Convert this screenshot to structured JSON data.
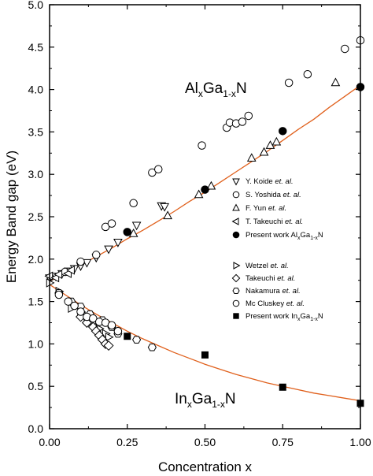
{
  "chart_data": {
    "type": "scatter",
    "xlabel": "Concentration x",
    "ylabel": "Energy Band gap (eV)",
    "xlim": [
      0,
      1
    ],
    "ylim": [
      0,
      5
    ],
    "x_ticks": [
      "0.00",
      "0.25",
      "0.50",
      "0.75",
      "1.00"
    ],
    "y_ticks": [
      "0.0",
      "0.5",
      "1.0",
      "1.5",
      "2.0",
      "2.5",
      "3.0",
      "3.5",
      "4.0",
      "4.5",
      "5.0"
    ],
    "grid": false,
    "legend_position": "right",
    "curve_color": "#e0601c",
    "annotations": [
      {
        "id": "algan",
        "parts": [
          {
            "t": "Al",
            "sub": false
          },
          {
            "t": "x",
            "sub": true
          },
          {
            "t": "Ga",
            "sub": false
          },
          {
            "t": "1-x",
            "sub": true
          },
          {
            "t": "N",
            "sub": false
          }
        ]
      },
      {
        "id": "ingan",
        "parts": [
          {
            "t": "In",
            "sub": false
          },
          {
            "t": "x",
            "sub": true
          },
          {
            "t": "Ga",
            "sub": false
          },
          {
            "t": "1-x",
            "sub": true
          },
          {
            "t": "N",
            "sub": false
          }
        ]
      }
    ],
    "fit_curves": [
      {
        "label": "AlGaN fit",
        "x": [
          0,
          0.05,
          0.1,
          0.15,
          0.2,
          0.25,
          0.3,
          0.35,
          0.4,
          0.45,
          0.5,
          0.55,
          0.6,
          0.65,
          0.7,
          0.75,
          0.8,
          0.85,
          0.9,
          0.95,
          1.0
        ],
        "y": [
          1.74,
          1.83,
          1.93,
          2.03,
          2.13,
          2.24,
          2.34,
          2.45,
          2.56,
          2.68,
          2.79,
          2.91,
          3.03,
          3.15,
          3.27,
          3.4,
          3.53,
          3.65,
          3.79,
          3.92,
          4.05
        ]
      },
      {
        "label": "InGaN fit",
        "x": [
          0,
          0.05,
          0.1,
          0.15,
          0.2,
          0.25,
          0.3,
          0.35,
          0.4,
          0.45,
          0.5,
          0.55,
          0.6,
          0.65,
          0.7,
          0.75,
          0.8,
          0.85,
          0.9,
          0.95,
          1.0
        ],
        "y": [
          1.7,
          1.58,
          1.46,
          1.35,
          1.25,
          1.15,
          1.06,
          0.98,
          0.9,
          0.83,
          0.76,
          0.7,
          0.64,
          0.59,
          0.54,
          0.5,
          0.46,
          0.42,
          0.39,
          0.36,
          0.33
        ]
      },
      {
        "label": "InGaN fit",
        "x": [],
        "y": []
      }
    ],
    "series": [
      {
        "name": "Y. Koide",
        "name_suffix": "et. al.",
        "marker": "triangle-down",
        "filled": false,
        "x": [
          0.0,
          0.02,
          0.04,
          0.06,
          0.08,
          0.1,
          0.12,
          0.15,
          0.19,
          0.22,
          0.28,
          0.36,
          0.37
        ],
        "y": [
          1.78,
          1.8,
          1.83,
          1.86,
          1.89,
          1.92,
          1.96,
          2.02,
          2.12,
          2.2,
          2.4,
          2.63,
          2.62
        ]
      },
      {
        "name": "S. Yoshida",
        "name_suffix": "et. al.",
        "marker": "circle",
        "filled": false,
        "x": [
          0.05,
          0.1,
          0.15,
          0.18,
          0.2,
          0.27,
          0.33,
          0.35,
          0.49,
          0.57,
          0.58,
          0.6,
          0.62,
          0.64,
          0.77,
          0.83,
          0.95,
          1.0
        ],
        "y": [
          1.85,
          1.97,
          2.05,
          2.38,
          2.42,
          2.66,
          3.02,
          3.06,
          3.34,
          3.55,
          3.61,
          3.6,
          3.62,
          3.69,
          4.08,
          4.18,
          4.48,
          4.58
        ]
      },
      {
        "name": "F. Yun",
        "name_suffix": "et. al.",
        "marker": "triangle-up",
        "filled": false,
        "x": [
          0.27,
          0.38,
          0.48,
          0.52,
          0.65,
          0.69,
          0.71,
          0.73,
          0.92
        ],
        "y": [
          2.3,
          2.51,
          2.76,
          2.86,
          3.19,
          3.26,
          3.34,
          3.38,
          4.08
        ]
      },
      {
        "name": "T. Takeuchi",
        "name_suffix": "et. al.",
        "marker": "triangle-left",
        "filled": false,
        "x": [
          0.0,
          0.02,
          0.03,
          0.06,
          0.07
        ],
        "y": [
          1.8,
          1.78,
          1.82,
          1.83,
          1.87
        ]
      },
      {
        "name": "Present work Al",
        "sub1": "x",
        "mid": "Ga",
        "sub2": "1-x",
        "end": "N",
        "marker": "circle",
        "filled": true,
        "x": [
          0.25,
          0.5,
          0.75,
          1.0
        ],
        "y": [
          2.32,
          2.82,
          3.51,
          4.03
        ]
      },
      {
        "name": "Wetzel",
        "name_suffix": "et. al.",
        "marker": "triangle-right",
        "filled": false,
        "x": [
          0.0,
          0.03,
          0.07,
          0.1,
          0.12,
          0.14,
          0.16,
          0.18,
          0.19
        ],
        "y": [
          1.72,
          1.62,
          1.42,
          1.38,
          1.33,
          1.25,
          1.18,
          1.12,
          1.08
        ]
      },
      {
        "name": "Takeuchi",
        "name_suffix": "et. al.",
        "marker": "diamond",
        "filled": false,
        "x": [
          0.1,
          0.12,
          0.14,
          0.15,
          0.16,
          0.17,
          0.18,
          0.19
        ],
        "y": [
          1.32,
          1.25,
          1.2,
          1.15,
          1.1,
          1.05,
          1.0,
          0.98
        ]
      },
      {
        "name": "Nakamura",
        "name_suffix": "et. al.",
        "marker": "hexagon",
        "filled": false,
        "x": [
          0.03,
          0.07,
          0.1,
          0.13,
          0.17,
          0.2,
          0.22,
          0.28,
          0.33
        ],
        "y": [
          1.6,
          1.5,
          1.44,
          1.35,
          1.28,
          1.2,
          1.12,
          1.05,
          0.96
        ]
      },
      {
        "name": "Mc Cluskey",
        "name_suffix": "et. al.",
        "marker": "circle",
        "filled": false,
        "x": [
          0.03,
          0.06,
          0.08,
          0.1,
          0.12,
          0.14,
          0.16,
          0.18,
          0.2,
          0.22
        ],
        "y": [
          1.58,
          1.5,
          1.45,
          1.38,
          1.32,
          1.3,
          1.26,
          1.25,
          1.22,
          1.15
        ]
      },
      {
        "name": "Present work In",
        "sub1": "x",
        "mid": "Ga",
        "sub2": "1-x",
        "end": "N",
        "marker": "square",
        "filled": true,
        "x": [
          0.25,
          0.5,
          0.75,
          1.0
        ],
        "y": [
          1.09,
          0.87,
          0.49,
          0.3
        ]
      }
    ]
  }
}
